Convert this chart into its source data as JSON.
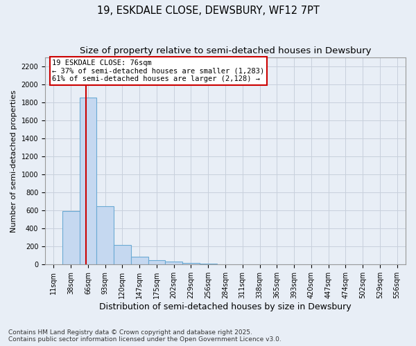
{
  "title1": "19, ESKDALE CLOSE, DEWSBURY, WF12 7PT",
  "title2": "Size of property relative to semi-detached houses in Dewsbury",
  "xlabel": "Distribution of semi-detached houses by size in Dewsbury",
  "ylabel": "Number of semi-detached properties",
  "annotation_line1": "19 ESKDALE CLOSE: 76sqm",
  "annotation_line2": "← 37% of semi-detached houses are smaller (1,283)",
  "annotation_line3": "61% of semi-detached houses are larger (2,128) →",
  "footnote1": "Contains HM Land Registry data © Crown copyright and database right 2025.",
  "footnote2": "Contains public sector information licensed under the Open Government Licence v3.0.",
  "categories": [
    "11sqm",
    "38sqm",
    "66sqm",
    "93sqm",
    "120sqm",
    "147sqm",
    "175sqm",
    "202sqm",
    "229sqm",
    "256sqm",
    "284sqm",
    "311sqm",
    "338sqm",
    "365sqm",
    "393sqm",
    "420sqm",
    "447sqm",
    "474sqm",
    "502sqm",
    "529sqm",
    "556sqm"
  ],
  "values": [
    3,
    595,
    1855,
    650,
    220,
    90,
    50,
    30,
    20,
    10,
    3,
    0,
    0,
    0,
    0,
    0,
    0,
    0,
    0,
    0,
    0
  ],
  "bar_color": "#c5d8f0",
  "bar_edge_color": "#6aaad4",
  "property_bin_index": 2,
  "red_line_color": "#cc0000",
  "annotation_box_edge_color": "#cc0000",
  "annotation_box_face_color": "#ffffff",
  "ylim": [
    0,
    2300
  ],
  "yticks": [
    0,
    200,
    400,
    600,
    800,
    1000,
    1200,
    1400,
    1600,
    1800,
    2000,
    2200
  ],
  "grid_color": "#c8d0dc",
  "bg_color": "#e8eef6",
  "title_fontsize": 10.5,
  "subtitle_fontsize": 9.5,
  "ylabel_fontsize": 8,
  "xlabel_fontsize": 9,
  "tick_fontsize": 7,
  "annotation_fontsize": 7.5,
  "footnote_fontsize": 6.5
}
